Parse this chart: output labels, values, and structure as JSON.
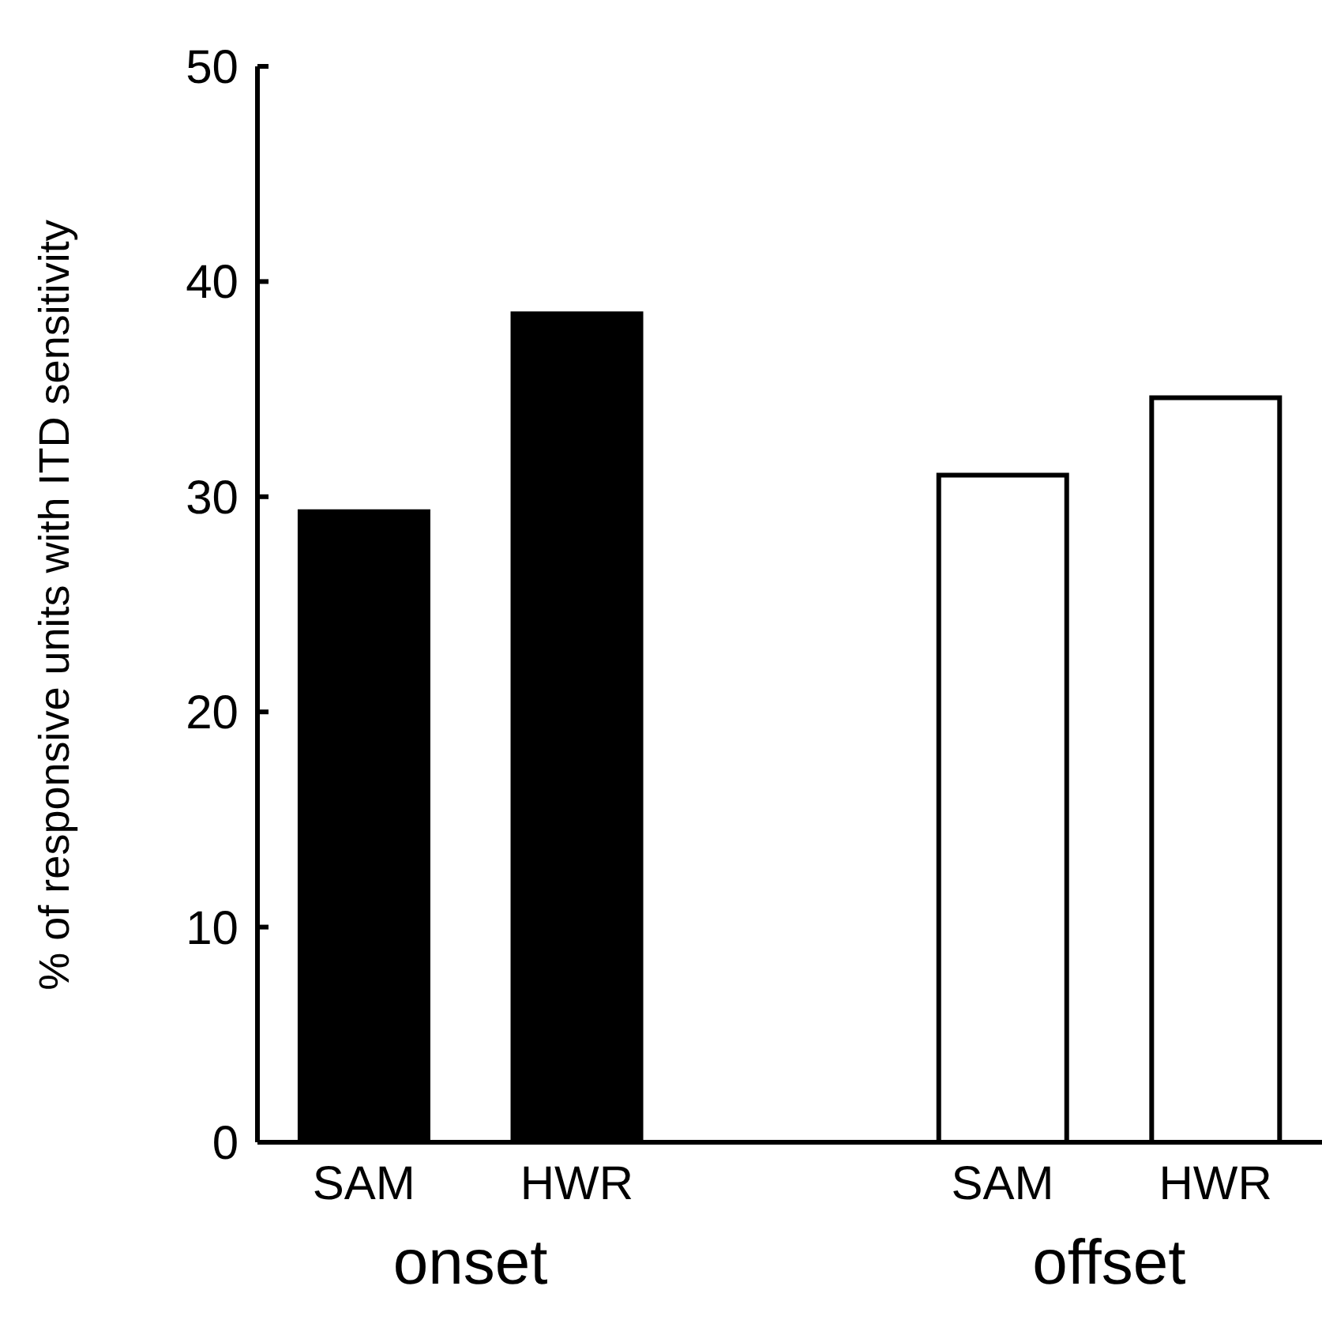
{
  "chart_data": {
    "type": "bar",
    "ylabel": "% of responsive units with ITD sensitivity",
    "categories": [
      "SAM",
      "HWR",
      null,
      "SAM",
      "HWR"
    ],
    "values": [
      29.3,
      38.5,
      null,
      31.0,
      34.6
    ],
    "colors": [
      "#000000",
      "#000000",
      null,
      "#ffffff",
      "#ffffff"
    ],
    "ylim": [
      0,
      50
    ],
    "yticks": [
      0,
      10,
      20,
      30,
      40,
      50
    ],
    "annotations": [
      "onset",
      "offset"
    ]
  }
}
